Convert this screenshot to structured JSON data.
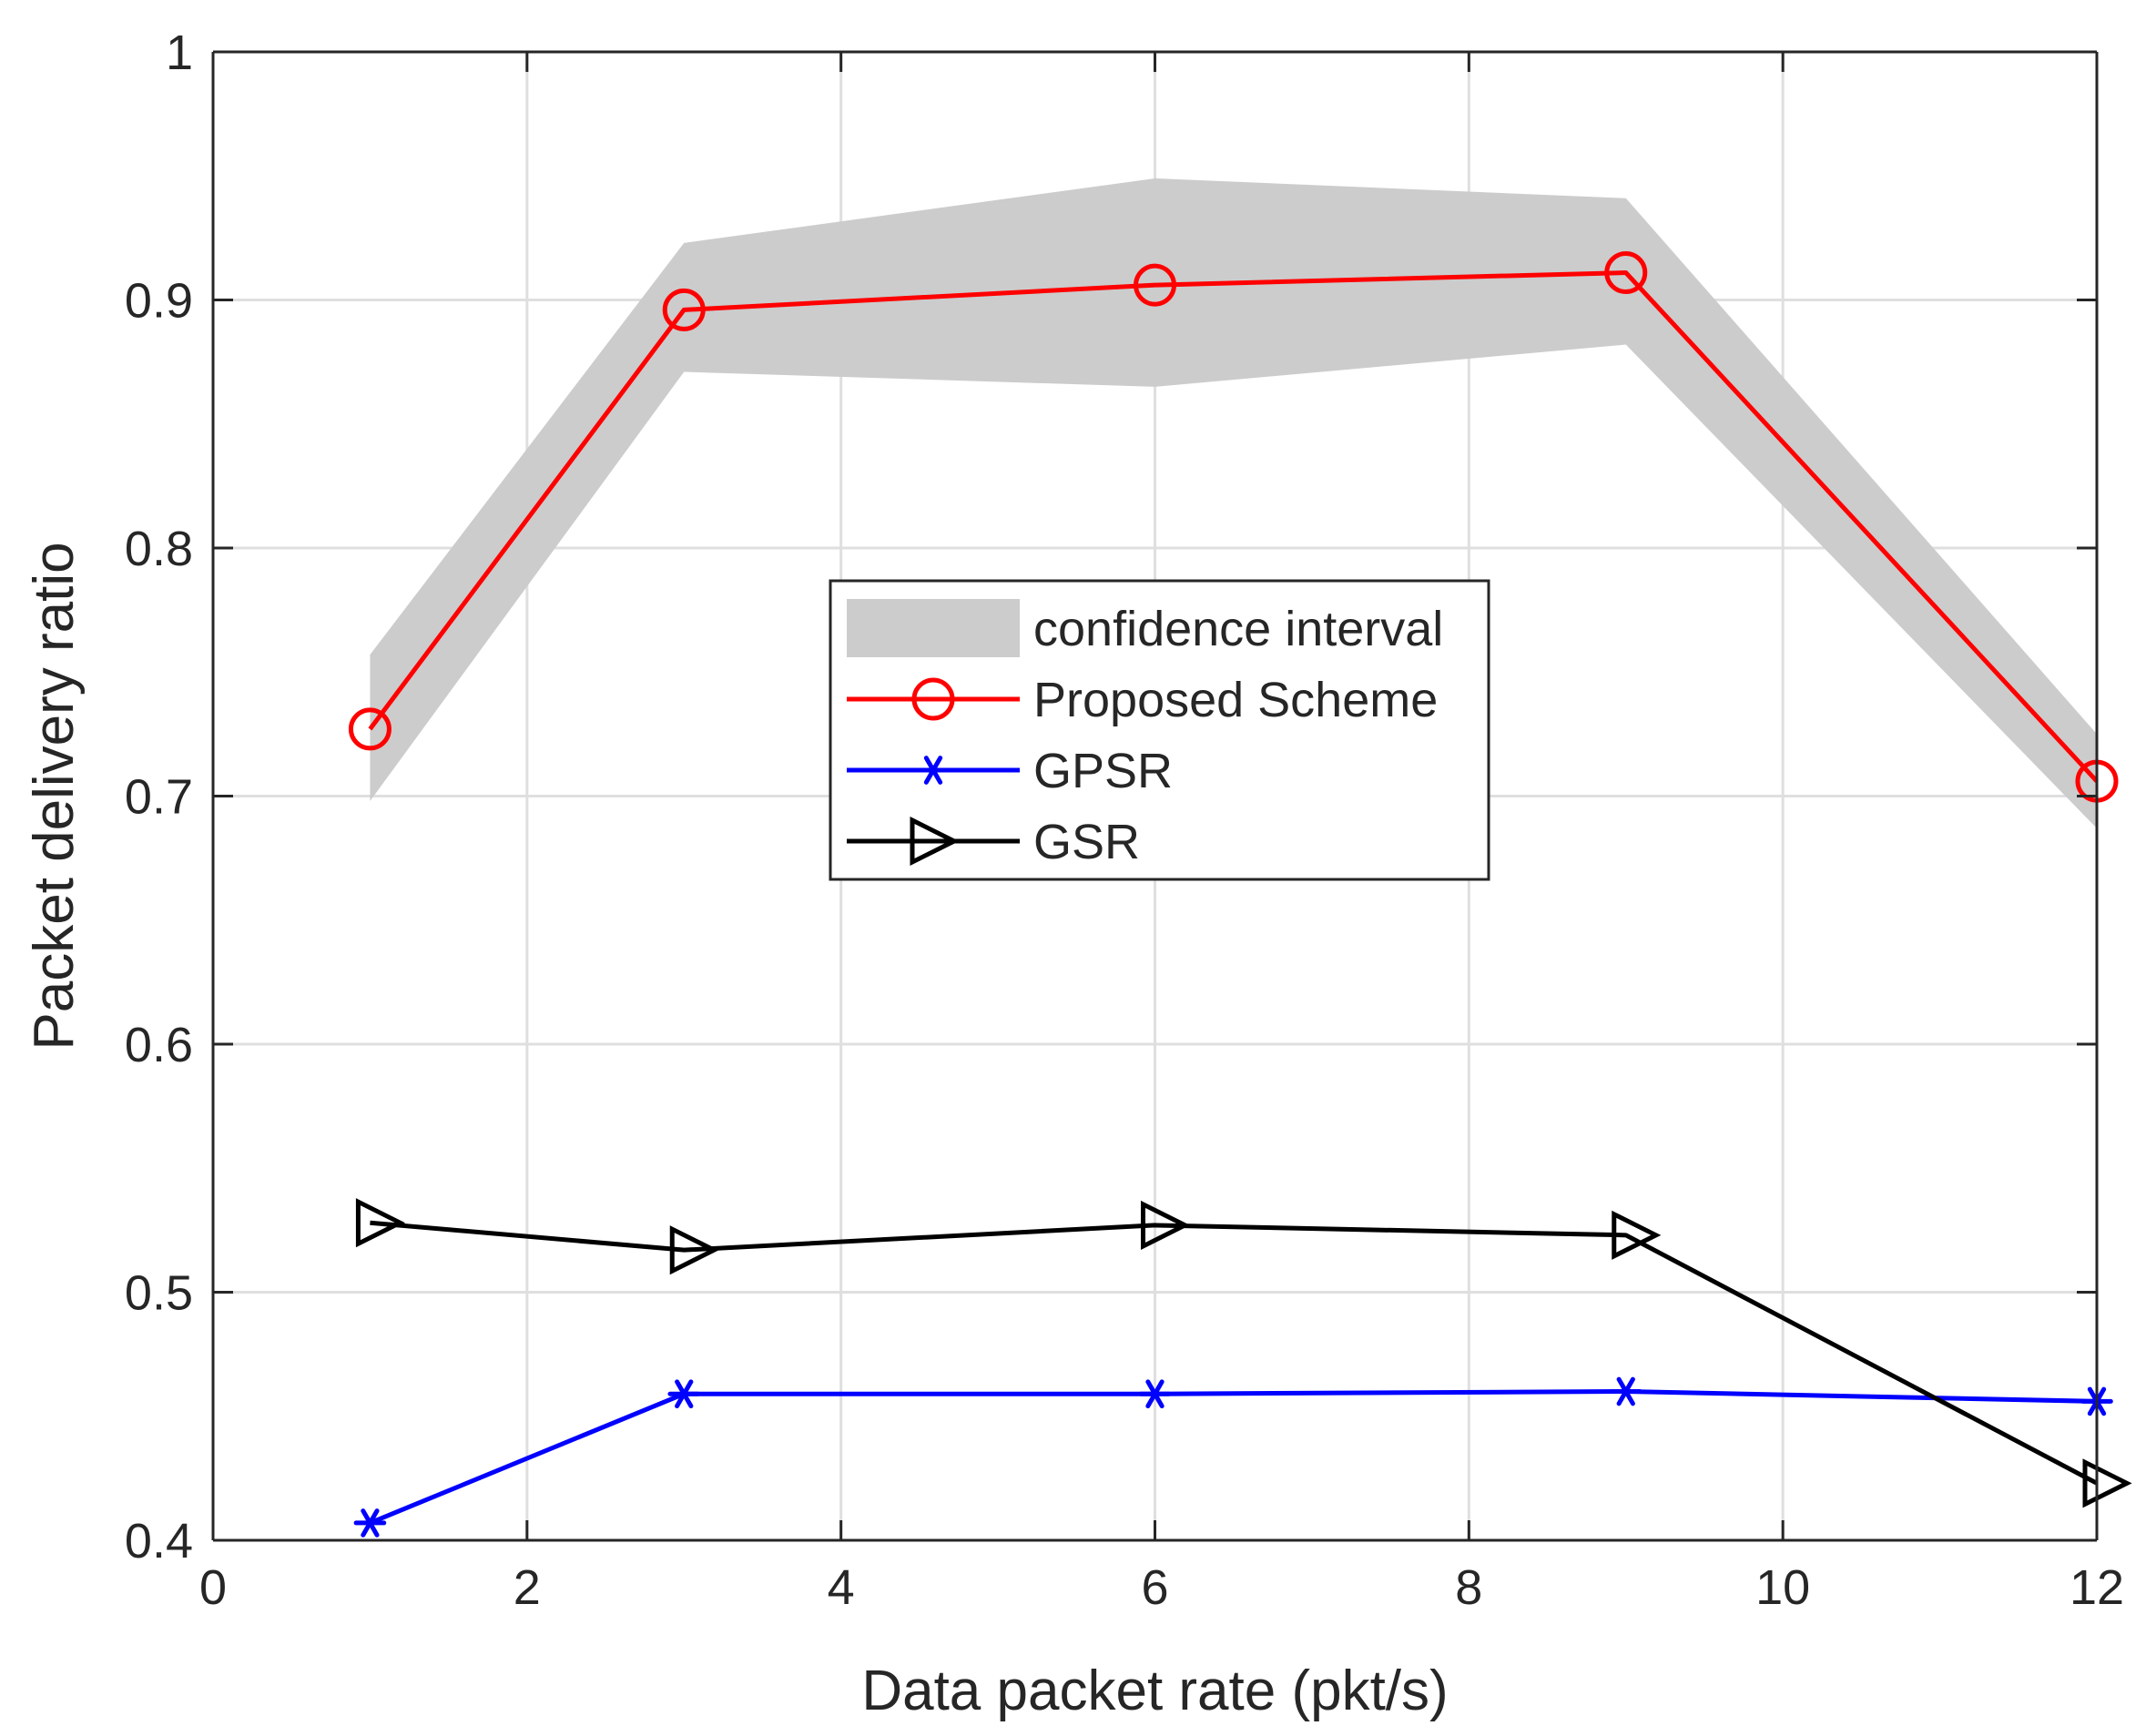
{
  "chart_data": {
    "type": "line",
    "title": "",
    "xlabel": "Data packet rate (pkt/s)",
    "ylabel": "Packet delivery ratio",
    "xlim": [
      0,
      12
    ],
    "ylim": [
      0.4,
      1
    ],
    "xticks": [
      0,
      2,
      4,
      6,
      8,
      10,
      12
    ],
    "yticks": [
      0.4,
      0.5,
      0.6,
      0.7,
      0.8,
      0.9,
      1
    ],
    "xtick_labels": [
      "0",
      "2",
      "4",
      "6",
      "8",
      "10",
      "12"
    ],
    "ytick_labels": [
      "0.4",
      "0.5",
      "0.6",
      "0.7",
      "0.8",
      "0.9",
      "1"
    ],
    "grid": true,
    "legend_position": "center",
    "x": [
      1,
      3,
      6,
      9,
      12
    ],
    "confidence_interval": {
      "name": "confidence interval",
      "upper": [
        0.757,
        0.923,
        0.949,
        0.941,
        0.725
      ],
      "lower": [
        0.698,
        0.871,
        0.865,
        0.882,
        0.687
      ],
      "color": "#cccccc"
    },
    "series": [
      {
        "name": "Proposed Scheme",
        "values": [
          0.727,
          0.896,
          0.906,
          0.911,
          0.706
        ],
        "color": "#ff0000",
        "marker": "circle"
      },
      {
        "name": "GPSR",
        "values": [
          0.407,
          0.459,
          0.459,
          0.46,
          0.456
        ],
        "color": "#0000ff",
        "marker": "asterisk"
      },
      {
        "name": "GSR",
        "values": [
          0.528,
          0.517,
          0.527,
          0.523,
          0.423
        ],
        "color": "#000000",
        "marker": "triangle-right"
      }
    ]
  }
}
